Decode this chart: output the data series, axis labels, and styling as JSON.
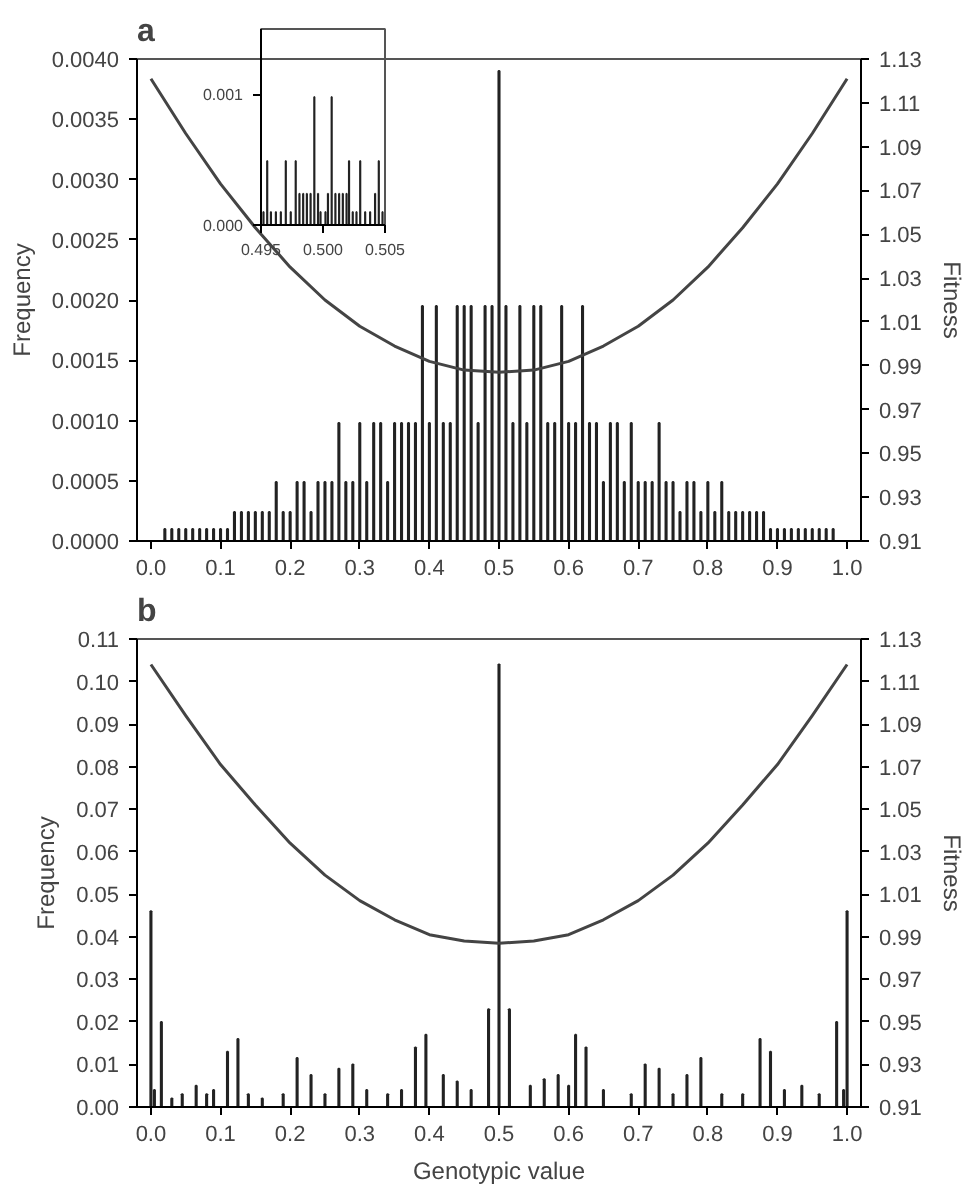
{
  "chart_data": [
    {
      "type": "bar",
      "title": "a",
      "ylabel": "Frequency",
      "y2label": "Fitness",
      "xlim": [
        -0.02,
        1.02
      ],
      "ylim": [
        0,
        0.004
      ],
      "y2lim": [
        0.91,
        1.13
      ],
      "xticks": [
        {
          "value": 0,
          "label": "0.0"
        },
        {
          "value": 0.1,
          "label": "0.1"
        },
        {
          "value": 0.2,
          "label": "0.2"
        },
        {
          "value": 0.3,
          "label": "0.3"
        },
        {
          "value": 0.4,
          "label": "0.4"
        },
        {
          "value": 0.5,
          "label": "0.5"
        },
        {
          "value": 0.6,
          "label": "0.6"
        },
        {
          "value": 0.7,
          "label": "0.7"
        },
        {
          "value": 0.8,
          "label": "0.8"
        },
        {
          "value": 0.9,
          "label": "0.9"
        },
        {
          "value": 1,
          "label": "1.0"
        }
      ],
      "yticks": [
        {
          "value": 0,
          "label": "0.0000"
        },
        {
          "value": 0.0005,
          "label": "0.0005"
        },
        {
          "value": 0.001,
          "label": "0.0010"
        },
        {
          "value": 0.0015,
          "label": "0.0015"
        },
        {
          "value": 0.002,
          "label": "0.0020"
        },
        {
          "value": 0.0025,
          "label": "0.0025"
        },
        {
          "value": 0.003,
          "label": "0.0030"
        },
        {
          "value": 0.0035,
          "label": "0.0035"
        },
        {
          "value": 0.004,
          "label": "0.0040"
        }
      ],
      "y2ticks": [
        0.91,
        0.93,
        0.95,
        0.97,
        0.99,
        1.01,
        1.03,
        1.05,
        1.07,
        1.09,
        1.11,
        1.13
      ],
      "series": [
        {
          "color": "#222222",
          "x": [
            0.02,
            0.03,
            0.04,
            0.05,
            0.06,
            0.07,
            0.08,
            0.09,
            0.1,
            0.11,
            0.12,
            0.13,
            0.14,
            0.15,
            0.16,
            0.17,
            0.18,
            0.19,
            0.2,
            0.21,
            0.22,
            0.23,
            0.24,
            0.25,
            0.26,
            0.27,
            0.28,
            0.29,
            0.3,
            0.31,
            0.32,
            0.33,
            0.34,
            0.35,
            0.36,
            0.37,
            0.38,
            0.39,
            0.4,
            0.41,
            0.42,
            0.43,
            0.44,
            0.45,
            0.46,
            0.47,
            0.48,
            0.49,
            0.5,
            0.51,
            0.52,
            0.53,
            0.54,
            0.55,
            0.56,
            0.57,
            0.58,
            0.59,
            0.6,
            0.61,
            0.62,
            0.63,
            0.64,
            0.65,
            0.66,
            0.67,
            0.68,
            0.69,
            0.7,
            0.71,
            0.72,
            0.73,
            0.74,
            0.75,
            0.76,
            0.77,
            0.78,
            0.79,
            0.8,
            0.81,
            0.82,
            0.83,
            0.84,
            0.85,
            0.86,
            0.87,
            0.88,
            0.89,
            0.9,
            0.91,
            0.92,
            0.93,
            0.94,
            0.95,
            0.96,
            0.97,
            0.98
          ],
          "values": [
            0.0001,
            0.0001,
            0.0001,
            0.0001,
            0.0001,
            0.0001,
            0.0001,
            0.0001,
            0.0001,
            0.0001,
            0.00024,
            0.00024,
            0.00024,
            0.00024,
            0.00024,
            0.00024,
            0.00049,
            0.00024,
            0.00024,
            0.00049,
            0.00049,
            0.00024,
            0.00049,
            0.00049,
            0.00049,
            0.00098,
            0.00049,
            0.00049,
            0.00098,
            0.00049,
            0.00098,
            0.00098,
            0.00049,
            0.00098,
            0.00098,
            0.00098,
            0.00098,
            0.00195,
            0.00098,
            0.00195,
            0.00098,
            0.00098,
            0.00195,
            0.00195,
            0.00195,
            0.00098,
            0.00195,
            0.00195,
            0.0039,
            0.00195,
            0.00098,
            0.00195,
            0.00098,
            0.00195,
            0.00195,
            0.00098,
            0.00098,
            0.00195,
            0.00098,
            0.00098,
            0.00195,
            0.00098,
            0.00098,
            0.00049,
            0.00098,
            0.00098,
            0.00049,
            0.00098,
            0.00049,
            0.00049,
            0.00049,
            0.00098,
            0.00049,
            0.00049,
            0.00024,
            0.00049,
            0.00049,
            0.00024,
            0.00049,
            0.00024,
            0.00049,
            0.00024,
            0.00024,
            0.00024,
            0.00024,
            0.00024,
            0.00024,
            0.0001,
            0.0001,
            0.0001,
            0.0001,
            0.0001,
            0.0001,
            0.0001,
            0.0001,
            0.0001,
            0.0001
          ]
        },
        {
          "type": "line",
          "axis": "y2",
          "color": "#444444",
          "x": [
            0,
            0.05,
            0.1,
            0.15,
            0.2,
            0.25,
            0.3,
            0.35,
            0.4,
            0.45,
            0.5,
            0.55,
            0.6,
            0.65,
            0.7,
            0.75,
            0.8,
            0.85,
            0.9,
            0.95,
            1
          ],
          "values": [
            1.121,
            1.096,
            1.073,
            1.053,
            1.035,
            1.02,
            1.008,
            0.999,
            0.992,
            0.988,
            0.987,
            0.988,
            0.992,
            0.999,
            1.008,
            1.02,
            1.035,
            1.053,
            1.073,
            1.096,
            1.121
          ]
        }
      ]
    },
    {
      "type": "bar",
      "xlim": [
        0.495,
        0.505
      ],
      "ylim": [
        0,
        0.0015
      ],
      "xticks": [
        {
          "value": 0.495,
          "label": "0.495"
        },
        {
          "value": 0.5,
          "label": "0.500"
        },
        {
          "value": 0.505,
          "label": "0.505"
        }
      ],
      "yticks": [
        {
          "value": 0,
          "label": "0.000"
        },
        {
          "value": 0.001,
          "label": "0.001"
        }
      ],
      "series": [
        {
          "color": "#222222",
          "x": [
            0.4952,
            0.4955,
            0.4958,
            0.4962,
            0.4966,
            0.497,
            0.4974,
            0.4978,
            0.4981,
            0.4984,
            0.4987,
            0.499,
            0.4993,
            0.4996,
            0.4998,
            0.5002,
            0.5004,
            0.5007,
            0.501,
            0.5013,
            0.5016,
            0.5019,
            0.5021,
            0.5024,
            0.5027,
            0.503,
            0.5034,
            0.5038,
            0.5042,
            0.5045,
            0.5048
          ],
          "values": [
            0.0001,
            0.00049,
            0.0001,
            0.0001,
            0.0001,
            0.00049,
            0.0001,
            0.00049,
            0.00024,
            0.00024,
            0.00024,
            0.00024,
            0.00098,
            0.00024,
            0.0001,
            0.0001,
            0.00024,
            0.00098,
            0.00024,
            0.00024,
            0.00024,
            0.00024,
            0.00049,
            0.0001,
            0.0001,
            0.00049,
            0.0001,
            0.0001,
            0.00024,
            0.00049,
            0.0001
          ]
        }
      ]
    },
    {
      "type": "bar",
      "title": "b",
      "xlabel": "Genotypic value",
      "ylabel": "Frequency",
      "y2label": "Fitness",
      "xlim": [
        -0.02,
        1.02
      ],
      "ylim": [
        0,
        0.11
      ],
      "y2lim": [
        0.91,
        1.13
      ],
      "xticks": [
        {
          "value": 0,
          "label": "0.0"
        },
        {
          "value": 0.1,
          "label": "0.1"
        },
        {
          "value": 0.2,
          "label": "0.2"
        },
        {
          "value": 0.3,
          "label": "0.3"
        },
        {
          "value": 0.4,
          "label": "0.4"
        },
        {
          "value": 0.5,
          "label": "0.5"
        },
        {
          "value": 0.6,
          "label": "0.6"
        },
        {
          "value": 0.7,
          "label": "0.7"
        },
        {
          "value": 0.8,
          "label": "0.8"
        },
        {
          "value": 0.9,
          "label": "0.9"
        },
        {
          "value": 1,
          "label": "1.0"
        }
      ],
      "yticks": [
        {
          "value": 0,
          "label": "0.00"
        },
        0.01,
        0.02,
        0.03,
        0.04,
        0.05,
        0.06,
        0.07,
        0.08,
        0.09,
        {
          "value": 0.1,
          "label": "0.10"
        },
        0.11
      ],
      "y2ticks": [
        0.91,
        0.93,
        0.95,
        0.97,
        0.99,
        1.01,
        1.03,
        1.05,
        1.07,
        1.09,
        1.11,
        1.13
      ],
      "series": [
        {
          "color": "#222222",
          "x": [
            0,
            0.005,
            0.015,
            0.03,
            0.045,
            0.065,
            0.08,
            0.09,
            0.11,
            0.125,
            0.14,
            0.16,
            0.19,
            0.21,
            0.23,
            0.25,
            0.27,
            0.29,
            0.31,
            0.34,
            0.36,
            0.38,
            0.395,
            0.42,
            0.44,
            0.46,
            0.485,
            0.5,
            0.515,
            0.545,
            0.565,
            0.585,
            0.6,
            0.61,
            0.625,
            0.65,
            0.69,
            0.71,
            0.73,
            0.75,
            0.77,
            0.79,
            0.82,
            0.85,
            0.875,
            0.89,
            0.91,
            0.935,
            0.96,
            0.985,
            0.995,
            1
          ],
          "values": [
            0.046,
            0.004,
            0.02,
            0.002,
            0.003,
            0.005,
            0.003,
            0.004,
            0.013,
            0.016,
            0.003,
            0.002,
            0.003,
            0.0115,
            0.0075,
            0.003,
            0.009,
            0.01,
            0.004,
            0.003,
            0.004,
            0.014,
            0.017,
            0.0075,
            0.006,
            0.004,
            0.023,
            0.104,
            0.023,
            0.005,
            0.0065,
            0.0075,
            0.005,
            0.017,
            0.014,
            0.004,
            0.003,
            0.01,
            0.009,
            0.003,
            0.0075,
            0.0115,
            0.003,
            0.003,
            0.016,
            0.013,
            0.004,
            0.005,
            0.003,
            0.02,
            0.004,
            0.046
          ]
        },
        {
          "type": "line",
          "axis": "y2",
          "color": "#444444",
          "x": [
            0,
            0.05,
            0.1,
            0.15,
            0.2,
            0.25,
            0.3,
            0.35,
            0.4,
            0.45,
            0.5,
            0.55,
            0.6,
            0.65,
            0.7,
            0.75,
            0.8,
            0.85,
            0.9,
            0.95,
            1
          ],
          "values": [
            1.118,
            1.094,
            1.071,
            1.052,
            1.034,
            1.019,
            1.007,
            0.998,
            0.991,
            0.988,
            0.987,
            0.988,
            0.991,
            0.998,
            1.007,
            1.019,
            1.034,
            1.052,
            1.071,
            1.094,
            1.118
          ]
        }
      ]
    }
  ]
}
